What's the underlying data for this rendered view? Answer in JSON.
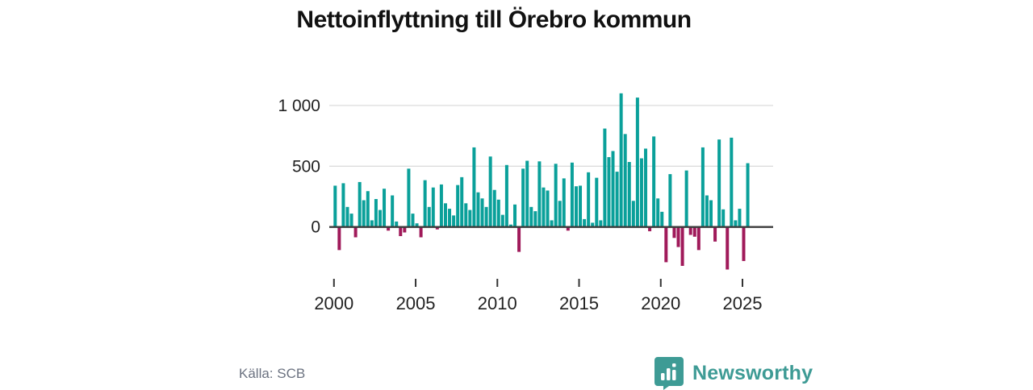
{
  "title": "Nettoinflyttning till Örebro kommun",
  "source": "Källa: SCB",
  "brand": {
    "name": "Newsworthy"
  },
  "colors": {
    "positive": "#0aa09a",
    "negative": "#a01a5a",
    "axis_line": "#3b3b3b",
    "gridline": "#dcdcdc",
    "tick_label": "#222222",
    "brand_teal": "#3e9b95"
  },
  "chart_data": {
    "type": "bar",
    "title": "Nettoinflyttning till Örebro kommun",
    "xlabel": "",
    "ylabel": "",
    "x_unit": "quarter",
    "start": "2000 Q1",
    "end": "2025 Q2",
    "grid": "horizontal",
    "legend": "none",
    "ylim": [
      -400,
      1150
    ],
    "yticks": [
      0,
      500,
      1000
    ],
    "ytick_labels": [
      "0",
      "500",
      "1 000"
    ],
    "xticks_years": [
      "2000",
      "2005",
      "2010",
      "2015",
      "2020",
      "2025"
    ],
    "categories": [
      "2000 Q1",
      "2000 Q2",
      "2000 Q3",
      "2000 Q4",
      "2001 Q1",
      "2001 Q2",
      "2001 Q3",
      "2001 Q4",
      "2002 Q1",
      "2002 Q2",
      "2002 Q3",
      "2002 Q4",
      "2003 Q1",
      "2003 Q2",
      "2003 Q3",
      "2003 Q4",
      "2004 Q1",
      "2004 Q2",
      "2004 Q3",
      "2004 Q4",
      "2005 Q1",
      "2005 Q2",
      "2005 Q3",
      "2005 Q4",
      "2006 Q1",
      "2006 Q2",
      "2006 Q3",
      "2006 Q4",
      "2007 Q1",
      "2007 Q2",
      "2007 Q3",
      "2007 Q4",
      "2008 Q1",
      "2008 Q2",
      "2008 Q3",
      "2008 Q4",
      "2009 Q1",
      "2009 Q2",
      "2009 Q3",
      "2009 Q4",
      "2010 Q1",
      "2010 Q2",
      "2010 Q3",
      "2010 Q4",
      "2011 Q1",
      "2011 Q2",
      "2011 Q3",
      "2011 Q4",
      "2012 Q1",
      "2012 Q2",
      "2012 Q3",
      "2012 Q4",
      "2013 Q1",
      "2013 Q2",
      "2013 Q3",
      "2013 Q4",
      "2014 Q1",
      "2014 Q2",
      "2014 Q3",
      "2014 Q4",
      "2015 Q1",
      "2015 Q2",
      "2015 Q3",
      "2015 Q4",
      "2016 Q1",
      "2016 Q2",
      "2016 Q3",
      "2016 Q4",
      "2017 Q1",
      "2017 Q2",
      "2017 Q3",
      "2017 Q4",
      "2018 Q1",
      "2018 Q2",
      "2018 Q3",
      "2018 Q4",
      "2019 Q1",
      "2019 Q2",
      "2019 Q3",
      "2019 Q4",
      "2020 Q1",
      "2020 Q2",
      "2020 Q3",
      "2020 Q4",
      "2021 Q1",
      "2021 Q2",
      "2021 Q3",
      "2021 Q4",
      "2022 Q1",
      "2022 Q2",
      "2022 Q3",
      "2022 Q4",
      "2023 Q1",
      "2023 Q2",
      "2023 Q3",
      "2023 Q4",
      "2024 Q1",
      "2024 Q2",
      "2024 Q3",
      "2024 Q4",
      "2025 Q1",
      "2025 Q2"
    ],
    "values": [
      340,
      -190,
      360,
      165,
      110,
      -85,
      370,
      220,
      295,
      55,
      230,
      140,
      315,
      -30,
      260,
      45,
      -75,
      -45,
      480,
      110,
      30,
      -85,
      385,
      165,
      325,
      -20,
      350,
      195,
      150,
      95,
      345,
      410,
      195,
      140,
      655,
      285,
      235,
      165,
      580,
      305,
      225,
      100,
      510,
      20,
      185,
      -205,
      480,
      545,
      165,
      130,
      540,
      325,
      300,
      55,
      520,
      215,
      400,
      -30,
      530,
      335,
      340,
      65,
      450,
      35,
      405,
      55,
      810,
      575,
      625,
      455,
      1100,
      765,
      535,
      215,
      1065,
      565,
      645,
      -35,
      745,
      235,
      125,
      -290,
      435,
      -90,
      -165,
      -320,
      465,
      -65,
      -80,
      -190,
      655,
      260,
      220,
      -120,
      720,
      145,
      -350,
      735,
      55,
      150,
      -280,
      525
    ]
  }
}
